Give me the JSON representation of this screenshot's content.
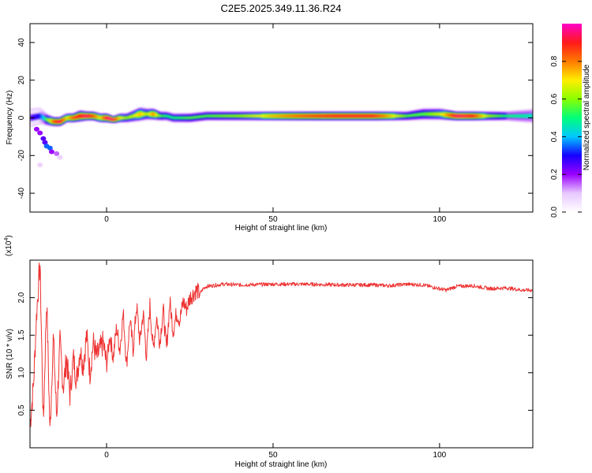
{
  "title": "C2E5.2025.349.11.36.R24",
  "chart_data": [
    {
      "type": "heatmap",
      "xlabel": "Height of straight line (km)",
      "ylabel": "Frequency (Hz)",
      "xlim": [
        -23,
        128
      ],
      "ylim": [
        -50,
        50
      ],
      "xticks": [
        0,
        50,
        100
      ],
      "yticks": [
        -40,
        -20,
        0,
        20,
        40
      ],
      "colorbar": {
        "label": "Normalized spectral amplitude",
        "range": [
          0,
          1
        ],
        "ticks": [
          "0.0",
          "0.2",
          "0.4",
          "0.6",
          "0.8"
        ],
        "colormap": [
          "#ffffff",
          "#e8c8ff",
          "#9a00ff",
          "#1600ff",
          "#00c8ff",
          "#00ff7a",
          "#8aff00",
          "#ffee00",
          "#ff7a00",
          "#ff1a1a",
          "#ff00c8"
        ]
      },
      "ridge": {
        "x": [
          -23,
          -20,
          -18,
          -16,
          -14,
          -12,
          -10,
          -8,
          -6,
          -4,
          -2,
          0,
          2,
          4,
          6,
          8,
          10,
          12,
          14,
          16,
          18,
          20,
          25,
          30,
          40,
          50,
          60,
          70,
          80,
          85,
          90,
          95,
          100,
          105,
          110,
          115,
          120,
          128
        ],
        "freq": [
          0,
          1,
          -1,
          -2,
          -2,
          0,
          0,
          1,
          1,
          1,
          0,
          0,
          -1,
          0,
          0,
          1,
          2,
          2,
          2,
          1,
          1,
          0,
          0,
          1,
          1,
          1,
          1,
          1,
          1,
          1,
          1,
          2,
          2,
          1,
          1,
          1,
          1,
          1
        ],
        "width": [
          8,
          7,
          5,
          4,
          4,
          4,
          4,
          5,
          4,
          4,
          4,
          4,
          3,
          4,
          4,
          5,
          6,
          5,
          5,
          4,
          4,
          4,
          4,
          4,
          4,
          4,
          4,
          4,
          4,
          4,
          4,
          5,
          5,
          4,
          4,
          4,
          4,
          6
        ],
        "amp": [
          0.25,
          0.3,
          0.55,
          0.85,
          0.95,
          0.7,
          0.85,
          0.9,
          0.95,
          0.85,
          0.7,
          0.95,
          0.95,
          0.7,
          0.6,
          0.65,
          0.75,
          0.6,
          0.8,
          0.55,
          0.5,
          0.5,
          0.55,
          0.55,
          0.6,
          0.75,
          0.85,
          0.9,
          0.9,
          0.75,
          0.55,
          0.55,
          0.65,
          0.95,
          0.9,
          0.6,
          0.5,
          0.45
        ]
      },
      "scatter": [
        {
          "x": -21,
          "freq": -6,
          "amp": 0.2
        },
        {
          "x": -20,
          "freq": -8,
          "amp": 0.2
        },
        {
          "x": -19,
          "freq": -11,
          "amp": 0.25
        },
        {
          "x": -18.5,
          "freq": -13,
          "amp": 0.25
        },
        {
          "x": -18,
          "freq": -15,
          "amp": 0.35
        },
        {
          "x": -17,
          "freq": -16,
          "amp": 0.35
        },
        {
          "x": -16.5,
          "freq": -18,
          "amp": 0.2
        },
        {
          "x": -15,
          "freq": -19,
          "amp": 0.15
        },
        {
          "x": -14,
          "freq": -21,
          "amp": 0.08
        },
        {
          "x": -20,
          "freq": -25,
          "amp": 0.08
        }
      ]
    },
    {
      "type": "line",
      "xlabel": "Height of straight line (km)",
      "ylabel": "SNR (10 * v/v)",
      "scale_label": "(x10^4)",
      "xlim": [
        -23,
        128
      ],
      "ylim": [
        0,
        2.5
      ],
      "xticks": [
        0,
        50,
        100
      ],
      "yticks": [
        0.5,
        1.0,
        1.5,
        2.0
      ],
      "line_color": "#ee3333",
      "series_sampled": {
        "x": [
          -23,
          -22,
          -21,
          -20,
          -19,
          -18,
          -17,
          -16,
          -15,
          -14,
          -13,
          -12,
          -11,
          -10,
          -9,
          -8,
          -7,
          -6,
          -5,
          -4,
          -3,
          -2,
          -1,
          0,
          1,
          2,
          3,
          4,
          5,
          6,
          7,
          8,
          9,
          10,
          11,
          12,
          13,
          14,
          15,
          16,
          17,
          18,
          19,
          20,
          21,
          22,
          23,
          24,
          25,
          26,
          27,
          28,
          29,
          30,
          35,
          40,
          50,
          60,
          70,
          80,
          85,
          90,
          95,
          100,
          102,
          105,
          110,
          115,
          120,
          125,
          128
        ],
        "y": [
          0.3,
          0.8,
          1.8,
          2.45,
          0.3,
          2.0,
          0.2,
          1.5,
          0.4,
          1.4,
          0.8,
          1.2,
          0.7,
          1.2,
          0.9,
          1.3,
          1.1,
          1.5,
          1.0,
          1.4,
          1.2,
          1.3,
          1.4,
          1.1,
          1.5,
          1.2,
          1.6,
          1.3,
          1.8,
          1.1,
          1.7,
          1.3,
          1.9,
          1.4,
          1.8,
          1.2,
          1.9,
          1.3,
          1.75,
          1.4,
          1.85,
          1.3,
          1.95,
          1.55,
          1.8,
          1.7,
          1.95,
          1.85,
          2.0,
          2.05,
          2.1,
          2.05,
          2.12,
          2.15,
          2.18,
          2.17,
          2.18,
          2.18,
          2.17,
          2.17,
          2.16,
          2.18,
          2.17,
          2.12,
          2.1,
          2.15,
          2.16,
          2.12,
          2.13,
          2.1,
          2.1
        ]
      }
    }
  ]
}
